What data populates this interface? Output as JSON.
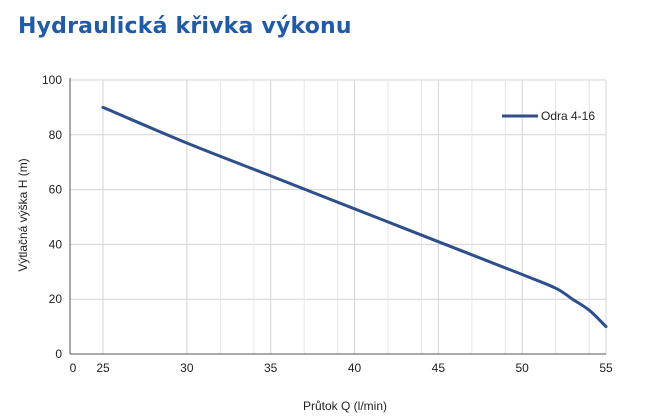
{
  "title": "Hydraulická křivka výkonu",
  "chart_data": {
    "type": "line",
    "title": "Hydraulická křivka výkonu",
    "xlabel": "Průtok Q (l/min)",
    "ylabel": "Výtlačná výška H (m)",
    "x_ticks": [
      0,
      25,
      30,
      35,
      40,
      45,
      50,
      55
    ],
    "x_tick_labels": [
      "0",
      "25",
      "30",
      "35",
      "40",
      "45",
      "50",
      "55"
    ],
    "y_ticks": [
      0,
      20,
      40,
      60,
      80,
      100
    ],
    "ylim": [
      0,
      100
    ],
    "minor_x_gridlines": [
      32,
      34,
      37,
      39,
      42,
      44,
      47,
      49,
      52,
      54
    ],
    "grid": true,
    "legend_position": "right",
    "series": [
      {
        "name": "Odra 4-16",
        "color": "#2e4f8c",
        "x": [
          25,
          30,
          35,
          40,
          45,
          50,
          52,
          53,
          54,
          55
        ],
        "y": [
          90,
          77,
          65,
          53,
          41,
          29,
          24,
          20,
          16,
          10
        ]
      }
    ]
  }
}
